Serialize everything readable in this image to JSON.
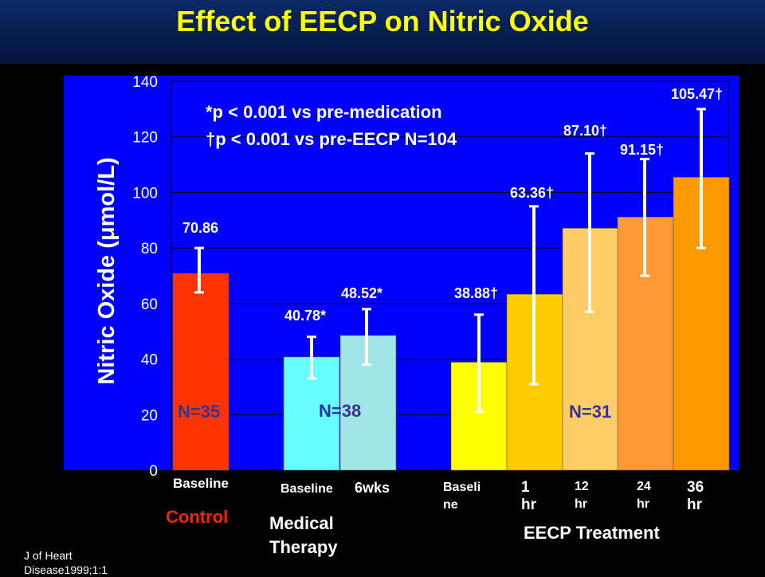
{
  "title": "Effect of EECP on Nitric Oxide",
  "source": "J of Heart Disease1999;1:1",
  "chart_data": {
    "type": "bar",
    "ylabel": "Nitric Oxide (μmol/L)",
    "ylim": [
      0,
      140
    ],
    "yticks": [
      0,
      20,
      40,
      60,
      80,
      100,
      120,
      140
    ],
    "grid": true,
    "notes": [
      "*p < 0.001 vs pre-medication",
      "†p < 0.001  vs pre-EECP  N=104"
    ],
    "bars": [
      {
        "label": "Baseline",
        "value": 70.86,
        "value_label": "70.86",
        "err_low": 64,
        "err_high": 80,
        "color": "#ff3300",
        "group": 0
      },
      {
        "label": "Baseline",
        "value": 40.78,
        "value_label": "40.78*",
        "err_low": 33,
        "err_high": 48,
        "color": "#66ffff",
        "group": 1
      },
      {
        "label": "6wks",
        "value": 48.52,
        "value_label": "48.52*",
        "err_low": 38,
        "err_high": 58,
        "color": "#a0e6e6",
        "group": 1
      },
      {
        "label": "Baseli ne",
        "value": 38.88,
        "value_label": "38.88†",
        "err_low": 21,
        "err_high": 56,
        "color": "#ffff00",
        "group": 2
      },
      {
        "label": "1 hr",
        "value": 63.36,
        "value_label": "63.36†",
        "err_low": 31,
        "err_high": 95,
        "color": "#ffcc00",
        "group": 2
      },
      {
        "label": "12 hr",
        "value": 87.1,
        "value_label": "87.10†",
        "err_low": 57,
        "err_high": 114,
        "color": "#ffcc66",
        "group": 2
      },
      {
        "label": "24 hr",
        "value": 91.15,
        "value_label": "91.15†",
        "err_low": 70,
        "err_high": 112,
        "color": "#ff9933",
        "group": 2
      },
      {
        "label": "36 hr",
        "value": 105.47,
        "value_label": "105.47†",
        "err_low": 80,
        "err_high": 130,
        "color": "#ff9900",
        "group": 2
      }
    ],
    "n_labels": [
      "N=35",
      "N=38",
      "N=31"
    ],
    "groups": [
      "Control",
      "Medical Therapy",
      "EECP Treatment"
    ]
  },
  "colors": {
    "plot_bg": "#0000ff",
    "title": "#ffff00",
    "control": "#ff2200",
    "n_label": "#333399"
  }
}
